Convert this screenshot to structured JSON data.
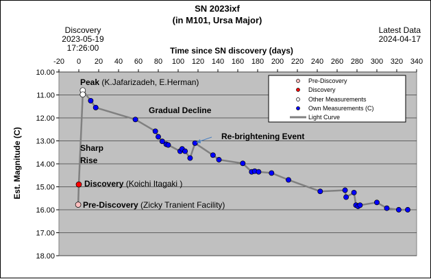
{
  "chart_data": {
    "type": "scatter",
    "title": "SN 2023ixf",
    "subtitle": "(in M101, Ursa Major)",
    "xlabel": "Time since SN discovery  (days)",
    "ylabel": "Est. Magnitude  (C)",
    "xlim": [
      -20,
      340
    ],
    "ylim": [
      10.0,
      18.0
    ],
    "y_inverted": true,
    "x_ticks": [
      "-20",
      "0",
      "20",
      "40",
      "60",
      "80",
      "100",
      "120",
      "140",
      "160",
      "180",
      "200",
      "220",
      "240",
      "260",
      "280",
      "300",
      "320",
      "340"
    ],
    "y_ticks": [
      "10.00",
      "11.00",
      "12.00",
      "13.00",
      "14.00",
      "15.00",
      "16.00",
      "17.00",
      "18.00"
    ],
    "grid": true,
    "legend_placement": "top-right",
    "discovery_note": {
      "label": "Discovery",
      "date": "2023-05-19",
      "time": "17:26:00"
    },
    "latest_note": {
      "label": "Latest Data",
      "date": "2024-04-17"
    },
    "legend": [
      {
        "label": "Pre-Discovery",
        "kind": "pre"
      },
      {
        "label": "Discovery",
        "kind": "disc"
      },
      {
        "label": "Other Measurements",
        "kind": "other"
      },
      {
        "label": "Own Measurements (C)",
        "kind": "own"
      },
      {
        "label": "Light Curve",
        "kind": "line"
      }
    ],
    "series": [
      {
        "name": "Pre-Discovery",
        "points": [
          [
            -0.6,
            15.78
          ]
        ]
      },
      {
        "name": "Discovery",
        "points": [
          [
            0,
            14.9
          ]
        ]
      },
      {
        "name": "Other Measurements",
        "points": [
          [
            4,
            10.8
          ],
          [
            4,
            10.98
          ]
        ]
      },
      {
        "name": "Own Measurements (C)",
        "points": [
          [
            12,
            11.25
          ],
          [
            17,
            11.55
          ],
          [
            57,
            12.07
          ],
          [
            77,
            12.58
          ],
          [
            80,
            12.82
          ],
          [
            84,
            13.02
          ],
          [
            88,
            13.15
          ],
          [
            90,
            13.18
          ],
          [
            102,
            13.45
          ],
          [
            104,
            13.35
          ],
          [
            107,
            13.45
          ],
          [
            112,
            13.75
          ],
          [
            117,
            13.1
          ],
          [
            135,
            13.62
          ],
          [
            141,
            13.82
          ],
          [
            165,
            13.98
          ],
          [
            174,
            14.35
          ],
          [
            177,
            14.32
          ],
          [
            181,
            14.35
          ],
          [
            194,
            14.4
          ],
          [
            211,
            14.7
          ],
          [
            243,
            15.2
          ],
          [
            268,
            15.15
          ],
          [
            269,
            15.45
          ],
          [
            277,
            15.25
          ],
          [
            279,
            15.8
          ],
          [
            281,
            15.85
          ],
          [
            283,
            15.8
          ],
          [
            300,
            15.68
          ],
          [
            310,
            15.93
          ],
          [
            322,
            16.0
          ],
          [
            331,
            16.0
          ]
        ]
      }
    ],
    "light_curve": [
      [
        -0.6,
        15.78
      ],
      [
        0,
        14.9
      ],
      [
        4,
        10.98
      ],
      [
        4,
        10.8
      ],
      [
        12,
        11.25
      ],
      [
        17,
        11.55
      ],
      [
        57,
        12.07
      ],
      [
        77,
        12.58
      ],
      [
        80,
        12.82
      ],
      [
        84,
        13.02
      ],
      [
        88,
        13.15
      ],
      [
        90,
        13.18
      ],
      [
        102,
        13.45
      ],
      [
        104,
        13.35
      ],
      [
        107,
        13.45
      ],
      [
        112,
        13.75
      ],
      [
        117,
        13.1
      ],
      [
        135,
        13.62
      ],
      [
        141,
        13.82
      ],
      [
        165,
        13.98
      ],
      [
        174,
        14.35
      ],
      [
        181,
        14.35
      ],
      [
        194,
        14.4
      ],
      [
        211,
        14.7
      ],
      [
        243,
        15.2
      ],
      [
        268,
        15.15
      ],
      [
        269,
        15.45
      ],
      [
        277,
        15.25
      ],
      [
        279,
        15.8
      ],
      [
        283,
        15.8
      ],
      [
        300,
        15.68
      ],
      [
        310,
        15.93
      ],
      [
        322,
        16.0
      ],
      [
        331,
        16.0
      ]
    ],
    "annotations": [
      {
        "bold": "Peak",
        "text": " (K.Jafarizadeh, E.Herman)"
      },
      {
        "bold": "Gradual Decline",
        "text": ""
      },
      {
        "bold": "Re-brightening Event",
        "text": ""
      },
      {
        "bold": "Sharp",
        "text": ""
      },
      {
        "bold": "Rise",
        "text": ""
      },
      {
        "bold": "Discovery",
        "text": " (Koichi Itagaki )"
      },
      {
        "bold": "Pre-Discovery",
        "text": " (Zicky Tranient Facility)"
      }
    ],
    "colors": {
      "plot_bg": "#c0c0c0",
      "line": "#808080",
      "own": "#0000ff",
      "disc": "#ff0000",
      "pre": "#ffc0c0",
      "other": "#ffffff"
    }
  }
}
